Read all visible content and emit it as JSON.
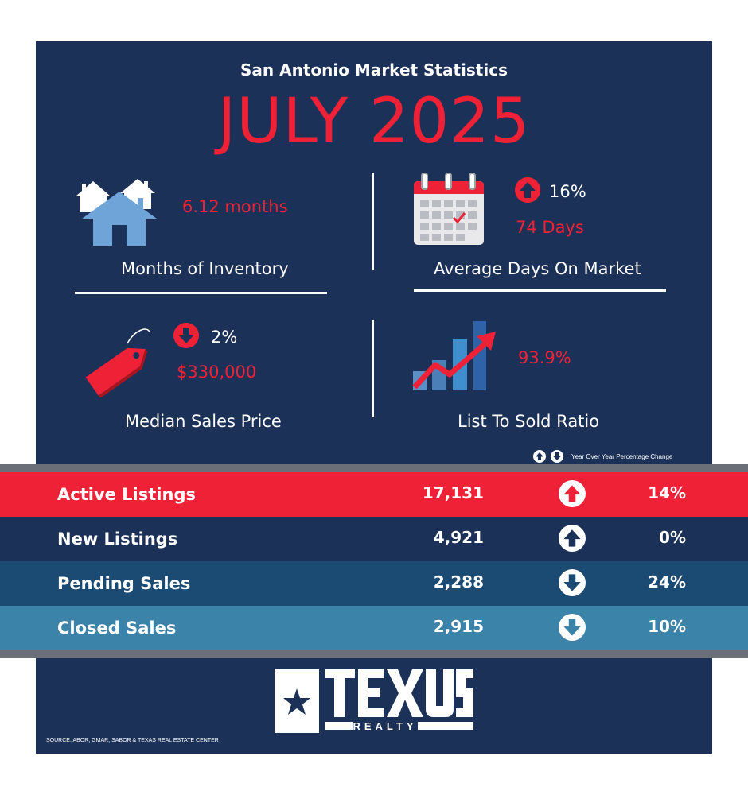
{
  "header": {
    "subtitle": "San Antonio Market Statistics",
    "title": "JULY 2025"
  },
  "stats": {
    "inventory": {
      "value": "6.12 months",
      "label": "Months of Inventory"
    },
    "days_on_market": {
      "change": "16%",
      "change_direction": "up",
      "value": "74 Days",
      "label": "Average Days On Market"
    },
    "median_price": {
      "change": "2%",
      "change_direction": "down",
      "value": "$330,000",
      "label": "Median Sales Price"
    },
    "list_to_sold": {
      "value": "93.9%",
      "label": "List To Sold Ratio"
    }
  },
  "legend": {
    "text": "Year  Over Year Percentage Change"
  },
  "table": {
    "rows": [
      {
        "label": "Active Listings",
        "value": "17,131",
        "direction": "up",
        "change": "14%",
        "color": "#ef2137"
      },
      {
        "label": "New Listings",
        "value": "4,921",
        "direction": "up",
        "change": "0%",
        "color": "#1c3157"
      },
      {
        "label": "Pending Sales",
        "value": "2,288",
        "direction": "down",
        "change": "24%",
        "color": "#1b4a72"
      },
      {
        "label": "Closed Sales",
        "value": "2,915",
        "direction": "down",
        "change": "10%",
        "color": "#3b83a8"
      }
    ]
  },
  "logo": {
    "name": "TEXUS",
    "sub": "REALTY"
  },
  "footer": {
    "source": "SOURCE: ABOR, GMAR, SABOR & TEXAS REAL ESTATE CENTER"
  },
  "colors": {
    "background": "#1c3157",
    "accent": "#ef2137",
    "light_blue": "#6ea4d8"
  }
}
